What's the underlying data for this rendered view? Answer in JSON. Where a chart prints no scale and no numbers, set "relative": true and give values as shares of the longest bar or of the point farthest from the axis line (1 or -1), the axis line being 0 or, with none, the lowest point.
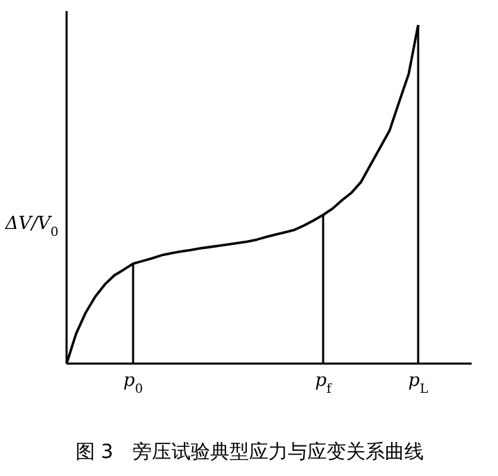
{
  "chart_data": {
    "type": "line",
    "relative": true,
    "title": "图 3　旁压试验典型应力与应变关系曲线",
    "ylabel": "ΔV/V$_{0}$",
    "color": "#000000",
    "categories": [
      null,
      null,
      null,
      null,
      null,
      null,
      null,
      "p$_{0}$",
      null,
      null,
      null,
      null,
      null,
      null,
      null,
      null,
      null,
      null,
      null,
      null,
      null,
      null,
      null,
      null,
      null,
      null,
      null,
      "p$_{f}$",
      null,
      null,
      null,
      null,
      null,
      null,
      null,
      null,
      null,
      "p$_{L}$"
    ],
    "values": [
      0,
      0.088,
      0.15,
      0.197,
      0.233,
      0.26,
      0.277,
      0.295,
      0.303,
      0.311,
      0.32,
      0.326,
      0.331,
      0.335,
      0.34,
      0.344,
      0.348,
      0.352,
      0.356,
      0.36,
      0.366,
      0.374,
      0.381,
      0.388,
      0.395,
      0.408,
      0.423,
      0.439,
      0.458,
      0.483,
      0.505,
      0.537,
      0.588,
      0.638,
      0.689,
      0.773,
      0.855,
      1.0
    ],
    "ref_lines": [
      {
        "axis": "x",
        "value": "p$_{0}$"
      },
      {
        "axis": "x",
        "value": "p$_{f}$"
      },
      {
        "axis": "x",
        "value": "p$_{L}$"
      }
    ]
  }
}
